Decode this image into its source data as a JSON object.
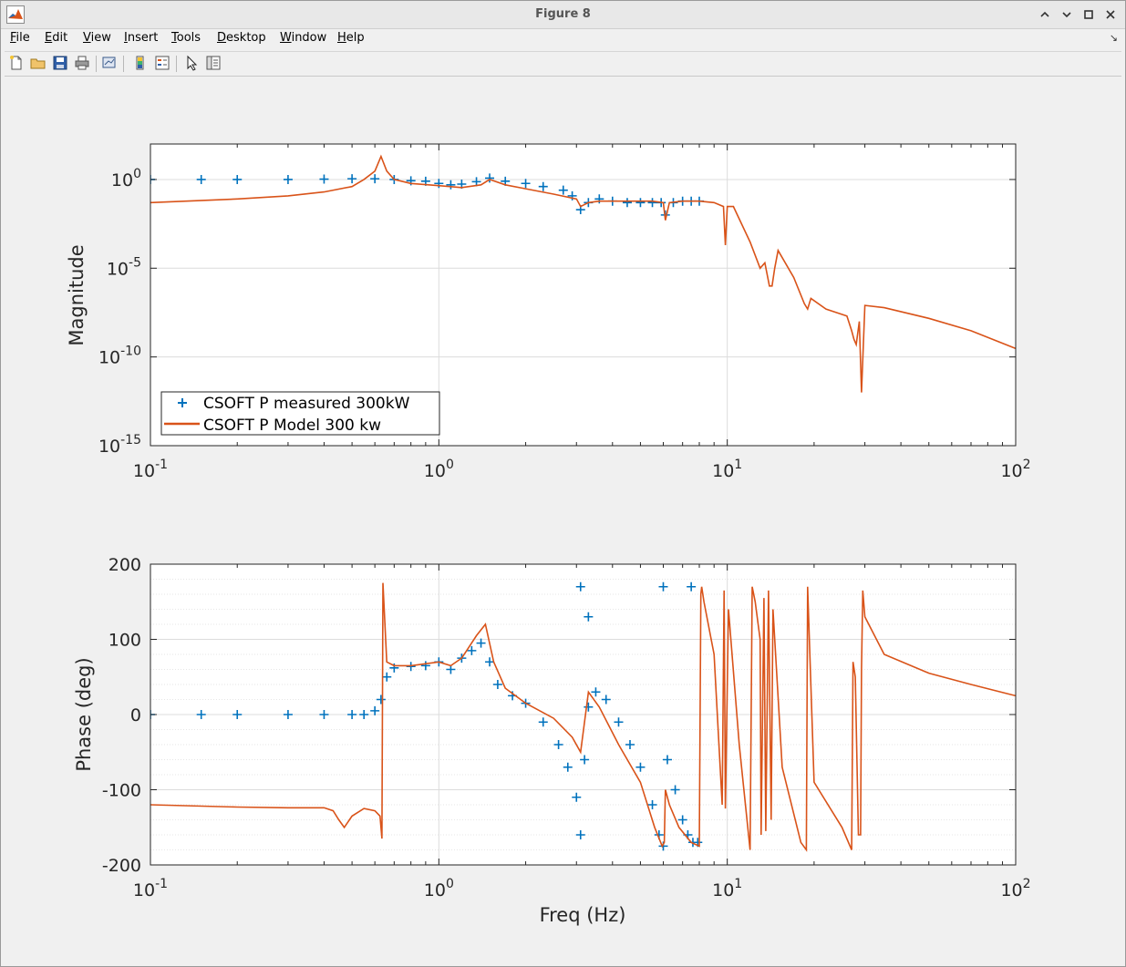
{
  "window": {
    "title": "Figure 8"
  },
  "menu": [
    "File",
    "Edit",
    "View",
    "Insert",
    "Tools",
    "Desktop",
    "Window",
    "Help"
  ],
  "toolbar": [
    "new-figure",
    "open-file",
    "save",
    "print",
    "link-plot",
    "colorbar",
    "legend",
    "edit-plot-arrow",
    "property-inspector"
  ],
  "colors": {
    "measured": "#0072bd",
    "model": "#d95319"
  },
  "chart_data": [
    {
      "type": "scatter",
      "xscale": "log",
      "yscale": "log",
      "xlim": [
        0.1,
        100
      ],
      "ylim": [
        1e-15,
        100.0
      ],
      "xticks": [
        "10^-1",
        "10^0",
        "10^1",
        "10^2"
      ],
      "yticks": [
        "10^0",
        "10^-5",
        "10^-10",
        "10^-15"
      ],
      "ylabel": "Magnitude",
      "grid": true,
      "legend": {
        "position": "bottom-left",
        "entries": [
          "CSOFT P measured 300kW",
          "CSOFT P Model 300 kw"
        ]
      },
      "series": [
        {
          "name": "CSOFT P measured 300kW",
          "marker": "+",
          "x": [
            0.1,
            0.15,
            0.2,
            0.3,
            0.4,
            0.5,
            0.6,
            0.7,
            0.8,
            0.9,
            1.0,
            1.1,
            1.2,
            1.35,
            1.5,
            1.7,
            2.0,
            2.3,
            2.7,
            2.9,
            3.1,
            3.3,
            3.6,
            4.0,
            4.5,
            5.0,
            5.5,
            5.9,
            6.1,
            6.5,
            7.0,
            7.5,
            8.0
          ],
          "y": [
            1,
            1,
            1,
            1,
            1.05,
            1.1,
            1.1,
            1.0,
            0.85,
            0.8,
            0.6,
            0.5,
            0.55,
            0.75,
            1.2,
            0.8,
            0.6,
            0.4,
            0.25,
            0.12,
            0.02,
            0.05,
            0.08,
            0.06,
            0.05,
            0.05,
            0.05,
            0.05,
            0.01,
            0.05,
            0.06,
            0.06,
            0.06
          ]
        },
        {
          "name": "CSOFT P Model 300 kw",
          "line": true,
          "x": [
            0.1,
            0.2,
            0.3,
            0.4,
            0.5,
            0.55,
            0.6,
            0.63,
            0.66,
            0.7,
            0.8,
            1.0,
            1.2,
            1.4,
            1.5,
            1.7,
            2.0,
            2.5,
            3.0,
            3.1,
            3.3,
            3.6,
            4.5,
            5.5,
            6.0,
            6.1,
            6.3,
            7.0,
            8.0,
            9.0,
            9.7,
            9.85,
            10.0,
            10.5,
            12.0,
            13.0,
            13.5,
            14.0,
            14.3,
            14.6,
            15.0,
            17.0,
            18.5,
            19.0,
            19.5,
            22.0,
            26.0,
            27.0,
            27.5,
            28.0,
            28.7,
            29.2,
            30.0,
            35.0,
            50.0,
            70.0,
            100.0
          ],
          "y": [
            0.05,
            0.08,
            0.12,
            0.2,
            0.4,
            1.0,
            3.0,
            20.0,
            3.0,
            1.0,
            0.6,
            0.45,
            0.35,
            0.5,
            1.0,
            0.5,
            0.3,
            0.15,
            0.08,
            0.03,
            0.05,
            0.06,
            0.06,
            0.06,
            0.05,
            0.005,
            0.05,
            0.06,
            0.06,
            0.05,
            0.03,
            0.0002,
            0.03,
            0.03,
            0.0003,
            1e-05,
            2e-05,
            1e-06,
            1e-06,
            1e-05,
            0.0001,
            3e-06,
            1e-07,
            5e-08,
            2e-07,
            5e-08,
            2e-08,
            3e-09,
            1e-09,
            5e-10,
            1e-08,
            1e-12,
            8e-08,
            6e-08,
            1.5e-08,
            3e-09,
            3e-10
          ]
        }
      ]
    },
    {
      "type": "scatter",
      "xscale": "log",
      "xlim": [
        0.1,
        100
      ],
      "ylim": [
        -200,
        200
      ],
      "xticks": [
        "10^-1",
        "10^0",
        "10^1",
        "10^2"
      ],
      "yticks": [
        200,
        100,
        0,
        -100,
        -200
      ],
      "xlabel": "Freq (Hz)",
      "ylabel": "Phase (deg)",
      "grid": true,
      "series": [
        {
          "name": "CSOFT P measured 300kW",
          "marker": "+",
          "x": [
            0.1,
            0.15,
            0.2,
            0.3,
            0.4,
            0.5,
            0.55,
            0.6,
            0.63,
            0.66,
            0.7,
            0.8,
            0.9,
            1.0,
            1.1,
            1.2,
            1.3,
            1.4,
            1.5,
            1.6,
            1.8,
            2.0,
            2.3,
            2.6,
            2.8,
            3.0,
            3.1,
            3.2,
            3.3,
            3.5,
            3.8,
            4.2,
            4.6,
            5.0,
            5.5,
            5.8,
            6.0,
            6.2,
            6.6,
            7.0,
            7.3,
            7.6,
            7.9,
            3.1,
            3.3,
            6.0,
            7.5
          ],
          "y": [
            0,
            0,
            0,
            0,
            0,
            0,
            0,
            5,
            20,
            50,
            62,
            64,
            65,
            70,
            60,
            75,
            85,
            95,
            70,
            40,
            25,
            15,
            -10,
            -40,
            -70,
            -110,
            -160,
            -60,
            10,
            30,
            20,
            -10,
            -40,
            -70,
            -120,
            -160,
            -175,
            -60,
            -100,
            -140,
            -160,
            -170,
            -170,
            170,
            130,
            170,
            170
          ]
        },
        {
          "name": "CSOFT P Model 300 kw",
          "line": true,
          "x": [
            0.1,
            0.2,
            0.3,
            0.4,
            0.43,
            0.45,
            0.47,
            0.5,
            0.55,
            0.6,
            0.625,
            0.635,
            0.64,
            0.66,
            0.7,
            0.8,
            1.0,
            1.1,
            1.2,
            1.35,
            1.45,
            1.55,
            1.7,
            2.0,
            2.5,
            2.9,
            3.1,
            3.3,
            3.6,
            4.2,
            5.0,
            5.6,
            5.95,
            6.05,
            6.1,
            6.3,
            6.8,
            7.5,
            8.0,
            8.1,
            8.15,
            8.3,
            9.0,
            9.6,
            9.75,
            9.85,
            10.1,
            11.0,
            12.0,
            12.2,
            12.5,
            13.0,
            13.1,
            13.4,
            13.6,
            13.9,
            14.2,
            14.4,
            15.5,
            18.0,
            18.8,
            19.0,
            20.0,
            25.0,
            27.0,
            27.3,
            27.8,
            28.5,
            29.0,
            29.2,
            29.5,
            30.0,
            35.0,
            50.0,
            70.0,
            100.0
          ],
          "y": [
            -120,
            -123,
            -124,
            -124,
            -128,
            -140,
            -150,
            -135,
            -125,
            -128,
            -135,
            -165,
            175,
            70,
            65,
            65,
            70,
            65,
            75,
            105,
            120,
            70,
            35,
            15,
            -5,
            -30,
            -50,
            30,
            10,
            -40,
            -90,
            -150,
            -175,
            -170,
            -100,
            -120,
            -150,
            -170,
            -175,
            160,
            170,
            150,
            80,
            -120,
            165,
            -125,
            140,
            -40,
            -180,
            170,
            150,
            100,
            -160,
            155,
            -155,
            165,
            -140,
            140,
            -70,
            -170,
            -180,
            170,
            -90,
            -150,
            -180,
            70,
            50,
            -160,
            -160,
            60,
            165,
            130,
            80,
            55,
            40,
            25
          ]
        }
      ]
    }
  ]
}
